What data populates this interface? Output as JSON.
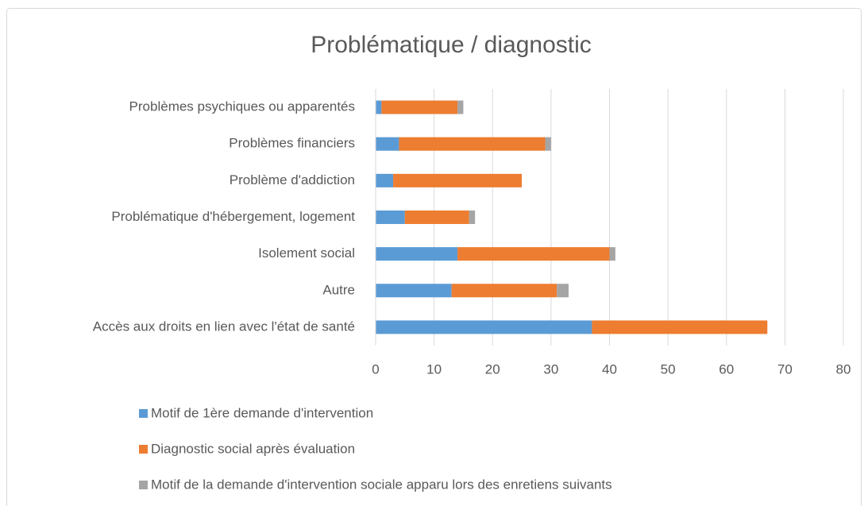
{
  "chart_data": {
    "type": "stacked-bar-horizontal",
    "title": "Problématique / diagnostic",
    "categories": [
      "Problèmes psychiques ou apparentés",
      "Problèmes financiers",
      "Problème d'addiction",
      "Problématique d'hébergement, logement",
      "Isolement social",
      "Autre",
      "Accès aux droits en lien avec l'état de santé"
    ],
    "series": [
      {
        "name": "Motif de 1ère demande d'intervention",
        "color": "#5b9bd5",
        "values": [
          1,
          4,
          3,
          5,
          14,
          13,
          37
        ]
      },
      {
        "name": "Diagnostic social après évaluation",
        "color": "#ed7d31",
        "values": [
          13,
          25,
          22,
          11,
          26,
          18,
          30
        ]
      },
      {
        "name": "Motif de la demande d'intervention sociale apparu lors des enretiens suivants",
        "color": "#a5a5a5",
        "values": [
          1,
          1,
          0,
          1,
          1,
          2,
          0
        ]
      }
    ],
    "xlim": [
      0,
      80
    ],
    "xticks": [
      0,
      10,
      20,
      30,
      40,
      50,
      60,
      70,
      80
    ],
    "grid": true,
    "legend": "bottom"
  }
}
